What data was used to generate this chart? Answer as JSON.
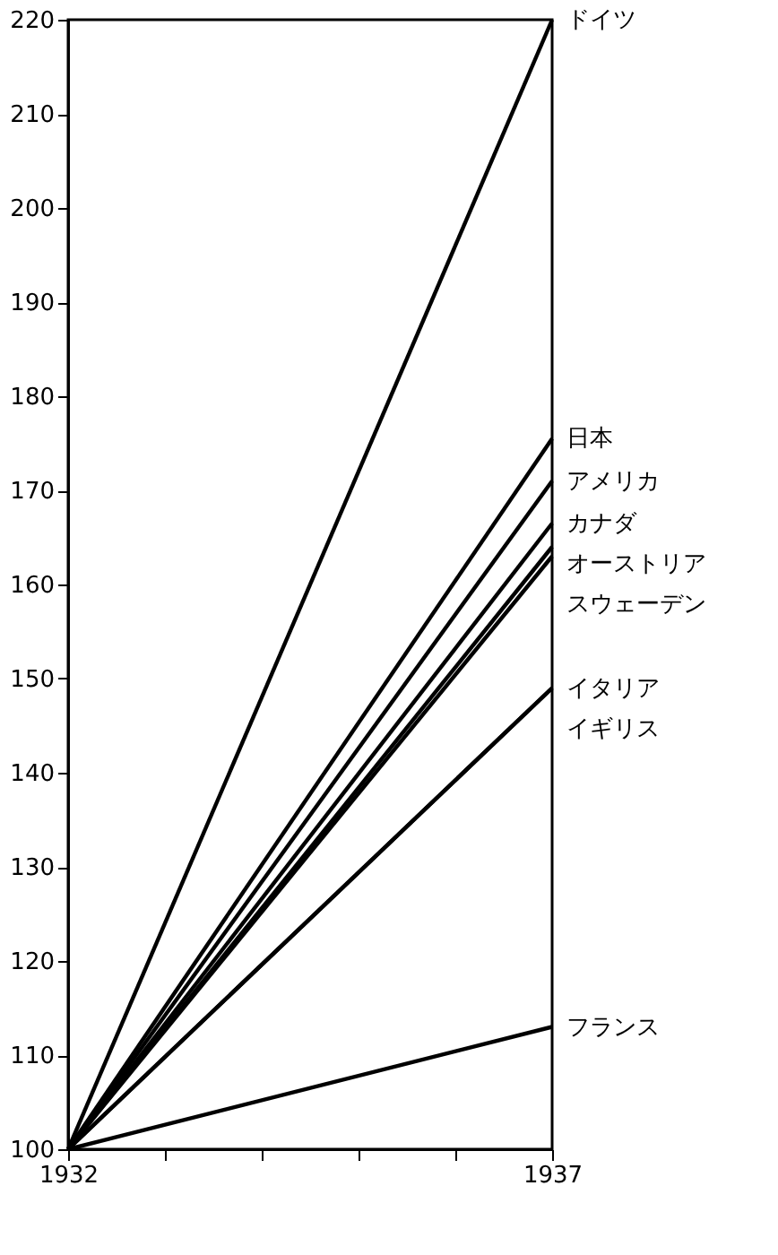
{
  "chart_data": {
    "type": "line",
    "grid": false,
    "legend": false,
    "marker": "none",
    "line_style": "solid",
    "x": [
      1932,
      1937
    ],
    "xlim": [
      1932,
      1937
    ],
    "xticks": [
      1932,
      {
        "value": 1933,
        "label": null
      },
      {
        "value": 1934,
        "label": null
      },
      {
        "value": 1935,
        "label": null
      },
      {
        "value": 1936,
        "label": null
      },
      1937
    ],
    "ylim": [
      100,
      220
    ],
    "yticks": [
      100,
      110,
      120,
      130,
      140,
      150,
      160,
      170,
      180,
      190,
      200,
      210,
      220
    ],
    "series": [
      {
        "name": "ドイツ",
        "color": "#000000",
        "values": [
          100,
          220
        ]
      },
      {
        "name": "日本",
        "color": "#000000",
        "values": [
          100,
          175.5
        ]
      },
      {
        "name": "アメリカ",
        "color": "#000000",
        "values": [
          100,
          171
        ]
      },
      {
        "name": "カナダ",
        "color": "#000000",
        "values": [
          100,
          166.5
        ]
      },
      {
        "name": "オーストリア",
        "color": "#000000",
        "values": [
          100,
          164
        ]
      },
      {
        "name": "スウェーデン",
        "color": "#000000",
        "values": [
          100,
          163
        ]
      },
      {
        "name": "イタリア",
        "color": "#000000",
        "values": [
          100,
          149
        ]
      },
      {
        "name": "イギリス",
        "color": "#000000",
        "values": [
          100,
          149
        ]
      },
      {
        "name": "フランス",
        "color": "#000000",
        "values": [
          100,
          113
        ]
      }
    ]
  }
}
